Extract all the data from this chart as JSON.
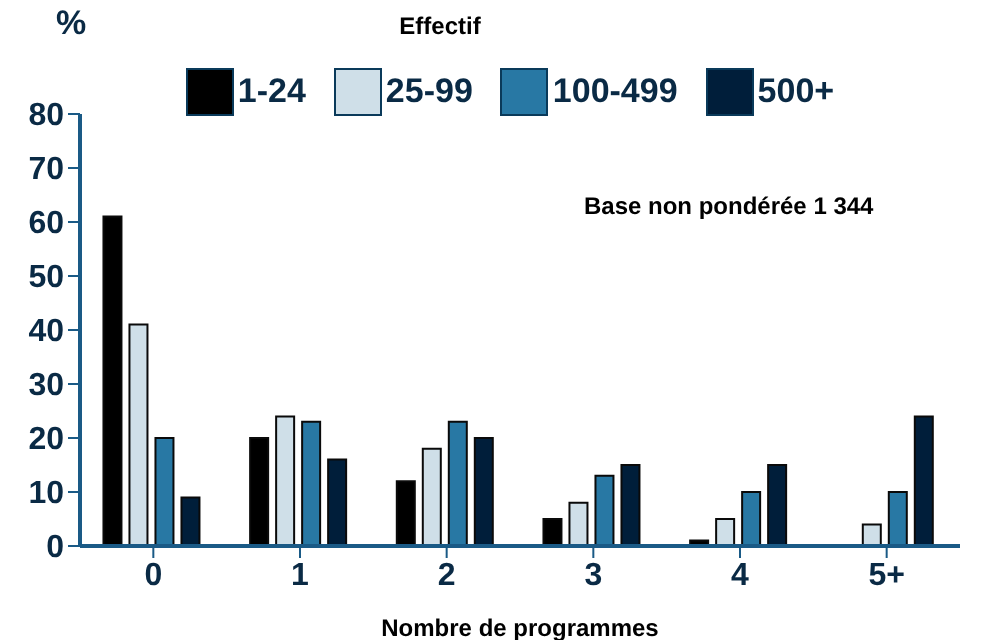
{
  "chart_data": {
    "type": "bar",
    "ylabel": "%",
    "xlabel": "Nombre de programmes",
    "legend_title": "Effectif",
    "annotations": [
      "Base non pondérée 1 344"
    ],
    "categories": [
      "0",
      "1",
      "2",
      "3",
      "4",
      "5+"
    ],
    "series": [
      {
        "name": "1-24",
        "color": "#000000",
        "values": [
          61,
          20,
          12,
          5,
          1,
          0
        ]
      },
      {
        "name": "25-99",
        "color": "#cfdfe8",
        "values": [
          41,
          24,
          18,
          8,
          5,
          4
        ]
      },
      {
        "name": "100-499",
        "color": "#2878a4",
        "values": [
          20,
          23,
          23,
          13,
          10,
          10
        ]
      },
      {
        "name": "500+",
        "color": "#001e3a",
        "values": [
          9,
          16,
          20,
          15,
          15,
          24
        ]
      }
    ],
    "ylim": [
      0,
      80
    ],
    "yticks": [
      0,
      10,
      20,
      30,
      40,
      50,
      60,
      70,
      80
    ],
    "grid": false,
    "legend": "top"
  }
}
